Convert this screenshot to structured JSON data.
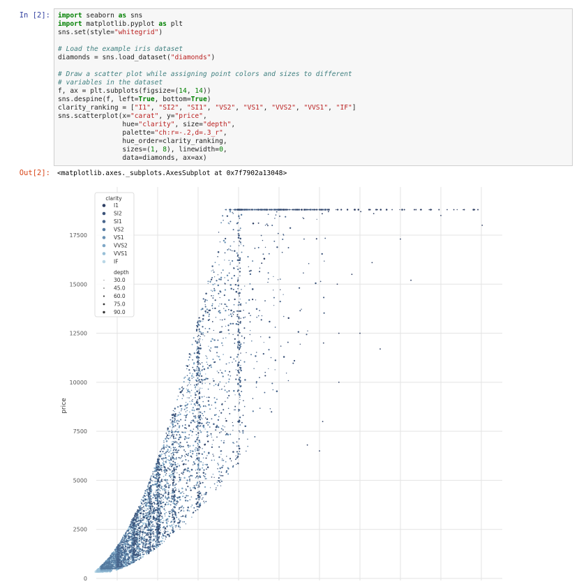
{
  "cell_in": {
    "prompt": "In [2]:",
    "code_lines": [
      [
        [
          "kw",
          "import"
        ],
        [
          "t",
          " seaborn "
        ],
        [
          "kw",
          "as"
        ],
        [
          "t",
          " sns"
        ]
      ],
      [
        [
          "kw",
          "import"
        ],
        [
          "t",
          " matplotlib.pyplot "
        ],
        [
          "kw",
          "as"
        ],
        [
          "t",
          " plt"
        ]
      ],
      [
        [
          "t",
          "sns.set(style="
        ],
        [
          "st",
          "\"whitegrid\""
        ],
        [
          "t",
          ")"
        ]
      ],
      [
        [
          "t",
          ""
        ]
      ],
      [
        [
          "cm",
          "# Load the example iris dataset"
        ]
      ],
      [
        [
          "t",
          "diamonds = sns.load_dataset("
        ],
        [
          "st",
          "\"diamonds\""
        ],
        [
          "t",
          ")"
        ]
      ],
      [
        [
          "t",
          ""
        ]
      ],
      [
        [
          "cm",
          "# Draw a scatter plot while assigning point colors and sizes to different"
        ]
      ],
      [
        [
          "cm",
          "# variables in the dataset"
        ]
      ],
      [
        [
          "t",
          "f, ax = plt.subplots(figsize=("
        ],
        [
          "nm",
          "14"
        ],
        [
          "t",
          ", "
        ],
        [
          "nm",
          "14"
        ],
        [
          "t",
          "))"
        ]
      ],
      [
        [
          "t",
          "sns.despine(f, left="
        ],
        [
          "kw",
          "True"
        ],
        [
          "t",
          ", bottom="
        ],
        [
          "kw",
          "True"
        ],
        [
          "t",
          ")"
        ]
      ],
      [
        [
          "t",
          "clarity_ranking = ["
        ],
        [
          "st",
          "\"I1\""
        ],
        [
          "t",
          ", "
        ],
        [
          "st",
          "\"SI2\""
        ],
        [
          "t",
          ", "
        ],
        [
          "st",
          "\"SI1\""
        ],
        [
          "t",
          ", "
        ],
        [
          "st",
          "\"VS2\""
        ],
        [
          "t",
          ", "
        ],
        [
          "st",
          "\"VS1\""
        ],
        [
          "t",
          ", "
        ],
        [
          "st",
          "\"VVS2\""
        ],
        [
          "t",
          ", "
        ],
        [
          "st",
          "\"VVS1\""
        ],
        [
          "t",
          ", "
        ],
        [
          "st",
          "\"IF\""
        ],
        [
          "t",
          "]"
        ]
      ],
      [
        [
          "t",
          "sns.scatterplot(x="
        ],
        [
          "st",
          "\"carat\""
        ],
        [
          "t",
          ", y="
        ],
        [
          "st",
          "\"price\""
        ],
        [
          "t",
          ","
        ]
      ],
      [
        [
          "t",
          "                hue="
        ],
        [
          "st",
          "\"clarity\""
        ],
        [
          "t",
          ", size="
        ],
        [
          "st",
          "\"depth\""
        ],
        [
          "t",
          ","
        ]
      ],
      [
        [
          "t",
          "                palette="
        ],
        [
          "st",
          "\"ch:r=-.2,d=.3_r\""
        ],
        [
          "t",
          ","
        ]
      ],
      [
        [
          "t",
          "                hue_order=clarity_ranking,"
        ]
      ],
      [
        [
          "t",
          "                sizes=("
        ],
        [
          "nm",
          "1"
        ],
        [
          "t",
          ", "
        ],
        [
          "nm",
          "8"
        ],
        [
          "t",
          "), linewidth="
        ],
        [
          "nm",
          "0"
        ],
        [
          "t",
          ","
        ]
      ],
      [
        [
          "t",
          "                data=diamonds, ax=ax)"
        ]
      ]
    ]
  },
  "cell_out": {
    "prompt": "Out[2]:",
    "text": "<matplotlib.axes._subplots.AxesSubplot at 0x7f7902a13048>"
  },
  "chart_data": {
    "type": "scatter",
    "xlabel": "",
    "ylabel": "price",
    "ylim": [
      0,
      18800
    ],
    "xlim": [
      0.1,
      5.1
    ],
    "yticks": [
      "0",
      "2500",
      "5000",
      "7500",
      "10000",
      "12500",
      "15000",
      "17500"
    ],
    "ytick_values": [
      0,
      2500,
      5000,
      7500,
      10000,
      12500,
      15000,
      17500
    ],
    "x_gridlines": [
      0.5,
      1.0,
      1.5,
      2.0,
      2.5,
      3.0,
      3.5,
      4.0,
      4.5,
      5.0
    ],
    "grid": true,
    "legend_placement": "top-left",
    "hue_title": "clarity",
    "hue_levels": [
      "I1",
      "SI2",
      "SI1",
      "VS2",
      "VS1",
      "VVS2",
      "VVS1",
      "IF"
    ],
    "hue_colors": [
      "#2d3e63",
      "#3b5379",
      "#48658c",
      "#567a9f",
      "#6890b3",
      "#7ea7c6",
      "#98bfd7",
      "#b9d7e6"
    ],
    "size_title": "depth",
    "size_levels": [
      "30.0",
      "45.0",
      "60.0",
      "75.0",
      "90.0"
    ],
    "size_values": [
      1.0,
      1.5,
      2.2,
      2.8,
      3.4
    ],
    "clusters": [
      {
        "hue": 7,
        "x_min": 0.23,
        "x_max": 0.9,
        "y_min": 330,
        "y_max": 6000,
        "n": 450
      },
      {
        "hue": 6,
        "x_min": 0.25,
        "x_max": 1.2,
        "y_min": 350,
        "y_max": 9000,
        "n": 650
      },
      {
        "hue": 5,
        "x_min": 0.3,
        "x_max": 1.6,
        "y_min": 400,
        "y_max": 14000,
        "n": 750
      },
      {
        "hue": 4,
        "x_min": 0.3,
        "x_max": 1.9,
        "y_min": 500,
        "y_max": 18700,
        "n": 900
      },
      {
        "hue": 3,
        "x_min": 0.3,
        "x_max": 2.2,
        "y_min": 500,
        "y_max": 18800,
        "n": 1100
      },
      {
        "hue": 2,
        "x_min": 0.5,
        "x_max": 2.6,
        "y_min": 600,
        "y_max": 18800,
        "n": 1000
      },
      {
        "hue": 1,
        "x_min": 0.7,
        "x_max": 3.1,
        "y_min": 1200,
        "y_max": 18800,
        "n": 900
      },
      {
        "hue": 0,
        "x_min": 1.0,
        "x_max": 5.0,
        "y_min": 1500,
        "y_max": 18800,
        "n": 160
      }
    ],
    "outliers": [
      {
        "x": 4.5,
        "y": 18500
      },
      {
        "x": 5.01,
        "y": 18000
      },
      {
        "x": 4.0,
        "y": 17300
      },
      {
        "x": 3.65,
        "y": 16100
      },
      {
        "x": 3.51,
        "y": 18700
      },
      {
        "x": 3.67,
        "y": 18600
      },
      {
        "x": 4.13,
        "y": 15200
      },
      {
        "x": 3.11,
        "y": 18700
      },
      {
        "x": 3.22,
        "y": 15000
      },
      {
        "x": 3.4,
        "y": 15500
      },
      {
        "x": 3.24,
        "y": 12500
      },
      {
        "x": 3.5,
        "y": 12500
      },
      {
        "x": 3.75,
        "y": 11700
      },
      {
        "x": 3.24,
        "y": 10000
      },
      {
        "x": 3.04,
        "y": 8000
      },
      {
        "x": 2.85,
        "y": 6800
      },
      {
        "x": 3.0,
        "y": 6500
      },
      {
        "x": 3.05,
        "y": 12000
      }
    ]
  }
}
